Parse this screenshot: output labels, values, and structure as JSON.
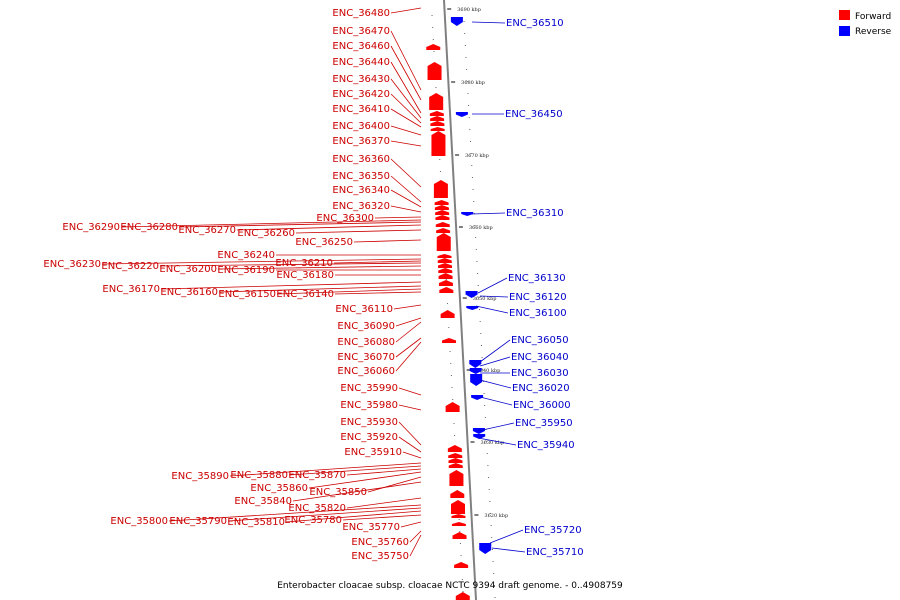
{
  "legend": {
    "forward": {
      "label": "Forward",
      "color": "#ff0000"
    },
    "reverse": {
      "label": "Reverse",
      "color": "#0000ff"
    }
  },
  "caption": "Enterobacter cloacae subsp. cloacae NCTC 9394 draft genome. - 0..4908759",
  "colors": {
    "forward": "#ff0000",
    "forward_label": "#cc0000",
    "reverse": "#0000ff",
    "reverse_label": "#0000cc",
    "leader": "#cc0000",
    "leader_rev": "#0000cc",
    "backbone": "#808080"
  },
  "scale_ticks": [
    "3690 kbp",
    "3680 kbp",
    "3670 kbp",
    "3660 kbp",
    "3650 kbp",
    "3640 kbp",
    "3630 kbp",
    "3620 kbp"
  ],
  "forward_labels": [
    "ENC_36480",
    "ENC_36470",
    "ENC_36460",
    "ENC_36440",
    "ENC_36430",
    "ENC_36420",
    "ENC_36410",
    "ENC_36400",
    "ENC_36370",
    "ENC_36360",
    "ENC_36350",
    "ENC_36340",
    "ENC_36320",
    "ENC_36300",
    "ENC_36290",
    "ENC_36280",
    "ENC_36270",
    "ENC_36260",
    "ENC_36250",
    "ENC_36240",
    "ENC_36230",
    "ENC_36220",
    "ENC_36210",
    "ENC_36200",
    "ENC_36190",
    "ENC_36180",
    "ENC_36170",
    "ENC_36160",
    "ENC_36150",
    "ENC_36140",
    "ENC_36110",
    "ENC_36090",
    "ENC_36080",
    "ENC_36070",
    "ENC_36060",
    "ENC_35990",
    "ENC_35980",
    "ENC_35930",
    "ENC_35920",
    "ENC_35910",
    "ENC_35890",
    "ENC_35880",
    "ENC_35870",
    "ENC_35860",
    "ENC_35850",
    "ENC_35840",
    "ENC_35820",
    "ENC_35800",
    "ENC_35790",
    "ENC_35810",
    "ENC_35780",
    "ENC_35770",
    "ENC_35760",
    "ENC_35750"
  ],
  "reverse_labels": [
    "ENC_36510",
    "ENC_36450",
    "ENC_36310",
    "ENC_36130",
    "ENC_36120",
    "ENC_36100",
    "ENC_36050",
    "ENC_36040",
    "ENC_36030",
    "ENC_36020",
    "ENC_36000",
    "ENC_35950",
    "ENC_35940",
    "ENC_35720",
    "ENC_35710"
  ]
}
